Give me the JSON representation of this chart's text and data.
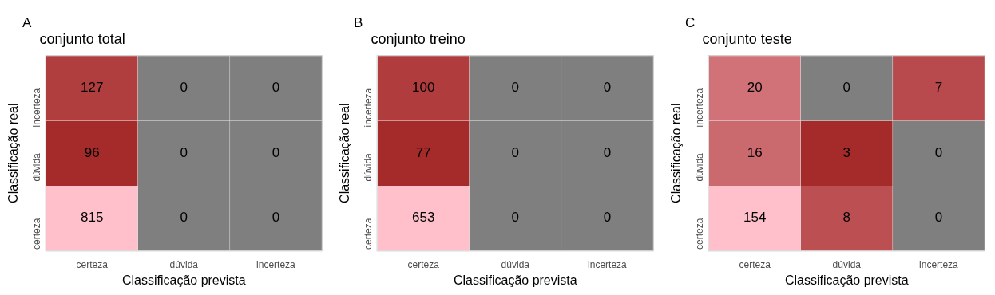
{
  "chart_data": [
    {
      "type": "heatmap",
      "title": "conjunto total",
      "annotations": [
        "A"
      ],
      "xlabel": "Classificação prevista",
      "ylabel": "Classificação real",
      "categories": [
        "certeza",
        "dúvida",
        "incerteza"
      ],
      "y_categories": [
        "incerteza",
        "dúvida",
        "certeza"
      ],
      "cells": [
        [
          127,
          0,
          0
        ],
        [
          96,
          0,
          0
        ],
        [
          815,
          0,
          0
        ]
      ],
      "colors": [
        "#a52a2a",
        "#ffc0cb",
        "#7f7f7f"
      ],
      "data_labels": true
    },
    {
      "type": "heatmap",
      "title": "conjunto treino",
      "annotations": [
        "B"
      ],
      "xlabel": "Classificação prevista",
      "ylabel": "Classificação real",
      "categories": [
        "certeza",
        "dúvida",
        "incerteza"
      ],
      "y_categories": [
        "incerteza",
        "dúvida",
        "certeza"
      ],
      "cells": [
        [
          100,
          0,
          0
        ],
        [
          77,
          0,
          0
        ],
        [
          653,
          0,
          0
        ]
      ],
      "colors": [
        "#a52a2a",
        "#ffc0cb",
        "#7f7f7f"
      ],
      "data_labels": true
    },
    {
      "type": "heatmap",
      "title": "conjunto teste",
      "annotations": [
        "C"
      ],
      "xlabel": "Classificação prevista",
      "ylabel": "Classificação real",
      "categories": [
        "certeza",
        "dúvida",
        "incerteza"
      ],
      "y_categories": [
        "incerteza",
        "dúvida",
        "certeza"
      ],
      "cells": [
        [
          20,
          0,
          7
        ],
        [
          16,
          3,
          0
        ],
        [
          154,
          8,
          0
        ]
      ],
      "colors": [
        "#a52a2a",
        "#ffc0cb",
        "#7f7f7f"
      ],
      "data_labels": true
    }
  ]
}
